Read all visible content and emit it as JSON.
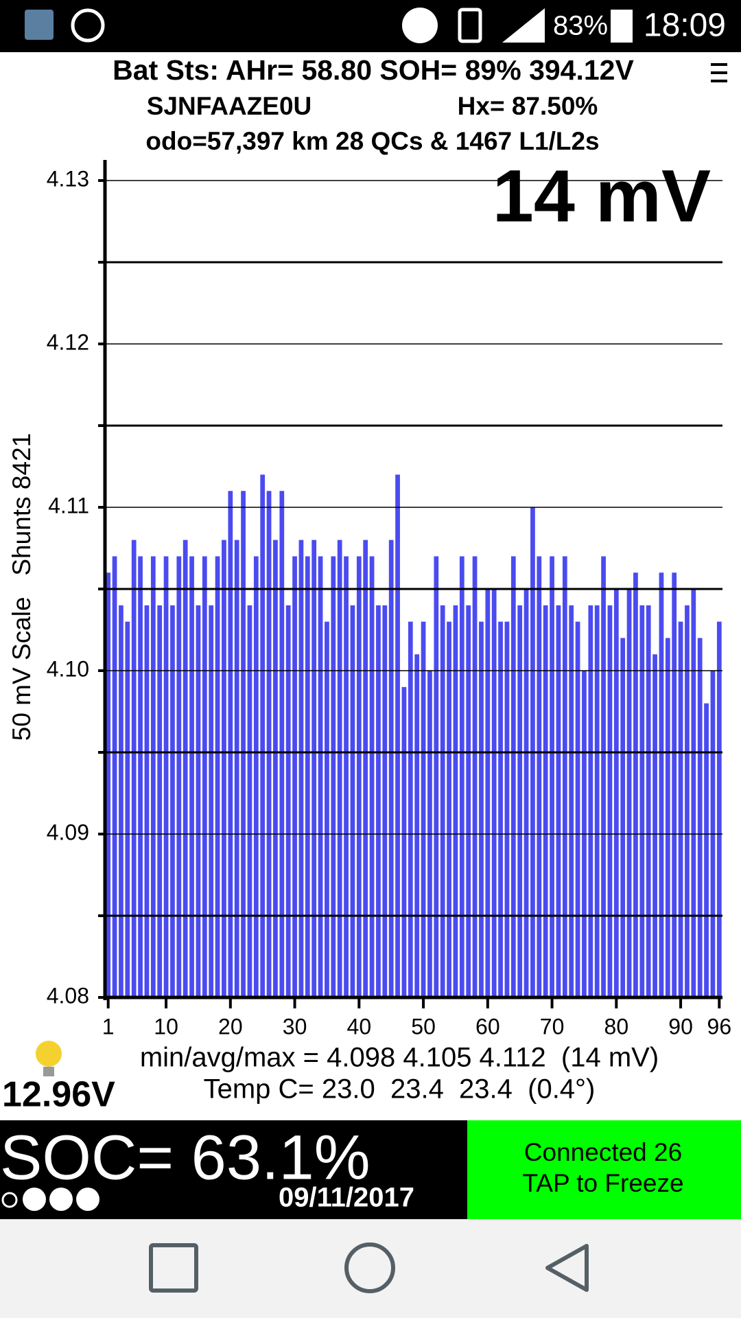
{
  "status_bar": {
    "battery": "83%",
    "time": "18:09"
  },
  "header": {
    "line1": "Bat Sts: AHr= 58.80 SOH= 89% 394.12V",
    "vin": "SJNFAAZE0U",
    "hx": "Hx= 87.50%",
    "line3": "odo=57,397 km 28 QCs & 1467 L1/L2s"
  },
  "chart_data": {
    "type": "bar",
    "annotation": "14 mV",
    "y_label": "50 mV Scale   Shunts 8421",
    "x": [
      1,
      2,
      3,
      4,
      5,
      6,
      7,
      8,
      9,
      10,
      11,
      12,
      13,
      14,
      15,
      16,
      17,
      18,
      19,
      20,
      21,
      22,
      23,
      24,
      25,
      26,
      27,
      28,
      29,
      30,
      31,
      32,
      33,
      34,
      35,
      36,
      37,
      38,
      39,
      40,
      41,
      42,
      43,
      44,
      45,
      46,
      47,
      48,
      49,
      50,
      51,
      52,
      53,
      54,
      55,
      56,
      57,
      58,
      59,
      60,
      61,
      62,
      63,
      64,
      65,
      66,
      67,
      68,
      69,
      70,
      71,
      72,
      73,
      74,
      75,
      76,
      77,
      78,
      79,
      80,
      81,
      82,
      83,
      84,
      85,
      86,
      87,
      88,
      89,
      90,
      91,
      92,
      93,
      94,
      95,
      96
    ],
    "values": [
      4.106,
      4.107,
      4.104,
      4.103,
      4.108,
      4.107,
      4.104,
      4.107,
      4.104,
      4.107,
      4.104,
      4.107,
      4.108,
      4.107,
      4.104,
      4.107,
      4.104,
      4.107,
      4.108,
      4.111,
      4.108,
      4.111,
      4.104,
      4.107,
      4.112,
      4.111,
      4.108,
      4.111,
      4.104,
      4.107,
      4.108,
      4.107,
      4.108,
      4.107,
      4.103,
      4.107,
      4.108,
      4.107,
      4.104,
      4.107,
      4.108,
      4.107,
      4.104,
      4.104,
      4.108,
      4.112,
      4.099,
      4.103,
      4.101,
      4.103,
      4.1,
      4.107,
      4.104,
      4.103,
      4.104,
      4.107,
      4.104,
      4.107,
      4.103,
      4.105,
      4.105,
      4.103,
      4.103,
      4.107,
      4.104,
      4.105,
      4.11,
      4.107,
      4.104,
      4.107,
      4.104,
      4.107,
      4.104,
      4.103,
      4.1,
      4.104,
      4.104,
      4.107,
      4.104,
      4.105,
      4.102,
      4.105,
      4.106,
      4.104,
      4.104,
      4.101,
      4.106,
      4.102,
      4.106,
      4.103,
      4.104,
      4.105,
      4.102,
      4.098,
      4.1,
      4.103
    ],
    "color": "#4b4bf0",
    "xlim": [
      0.5,
      96.5
    ],
    "xticks": [
      1,
      10,
      20,
      30,
      40,
      50,
      60,
      70,
      80,
      90,
      96
    ],
    "ylim": [
      4.08,
      4.13
    ],
    "yticks": [
      4.08,
      4.09,
      {
        "value": 4.1,
        "label": "4.10"
      },
      4.11,
      4.12,
      4.13
    ],
    "minor_yticks": [
      4.085,
      4.095,
      4.105,
      4.115,
      4.125
    ],
    "grid": true
  },
  "stats": {
    "cells": "min/avg/max = 4.098 4.105 4.112  (14 mV)",
    "temp": "Temp C= 23.0  23.4  23.4  (0.4°)",
    "aux_voltage": "12.96V"
  },
  "footer": {
    "soc": "SOC= 63.1%",
    "date": "09/11/2017",
    "status": "Connected 26",
    "action": "TAP to Freeze"
  }
}
